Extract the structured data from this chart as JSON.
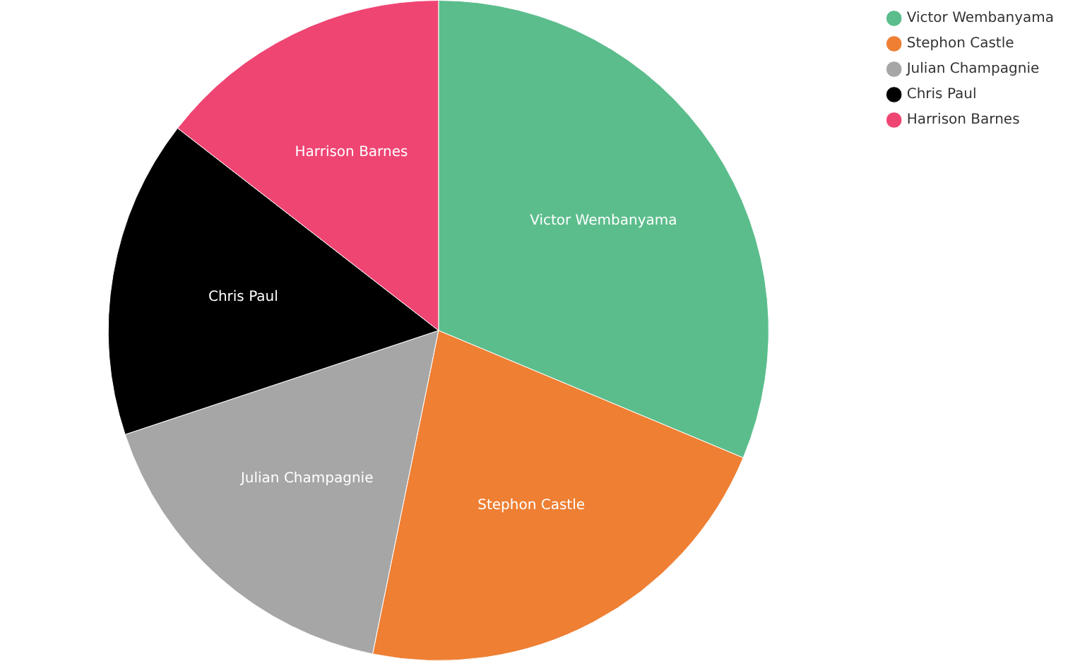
{
  "chart_data": {
    "type": "pie",
    "categories": [
      "Victor Wembanyama",
      "Stephon Castle",
      "Julian Champagnie",
      "Chris Paul",
      "Harrison Barnes"
    ],
    "values": [
      31.3,
      21.9,
      16.7,
      15.6,
      14.5
    ],
    "colors": [
      "#5bbd8c",
      "#ee7f33",
      "#a6a6a6",
      "#000000",
      "#ef4573"
    ],
    "legend": "top right"
  }
}
